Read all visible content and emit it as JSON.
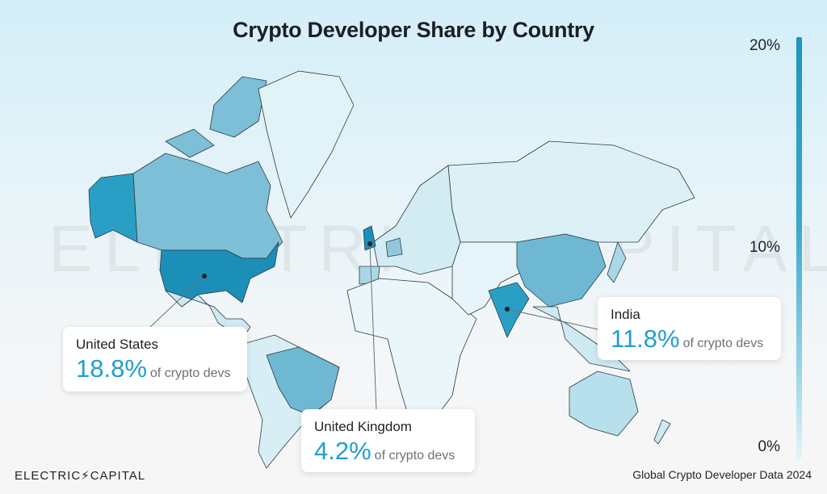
{
  "title": "Crypto Developer Share by Country",
  "watermark": "ELECTRIC CAPITAL",
  "legend": {
    "ticks": [
      "20%",
      "10%",
      "0%"
    ],
    "range": [
      0,
      20
    ],
    "color_high": "#1b97bf",
    "color_low": "#e3f4fa"
  },
  "callouts": [
    {
      "country": "United States",
      "value": "18.8%",
      "suffix": "of crypto devs"
    },
    {
      "country": "United Kingdom",
      "value": "4.2%",
      "suffix": "of crypto devs"
    },
    {
      "country": "India",
      "value": "11.8%",
      "suffix": "of crypto devs"
    }
  ],
  "footer": {
    "brand": "ELECTRIC⚡CAPITAL",
    "source": "Global Crypto Developer Data 2024"
  }
}
